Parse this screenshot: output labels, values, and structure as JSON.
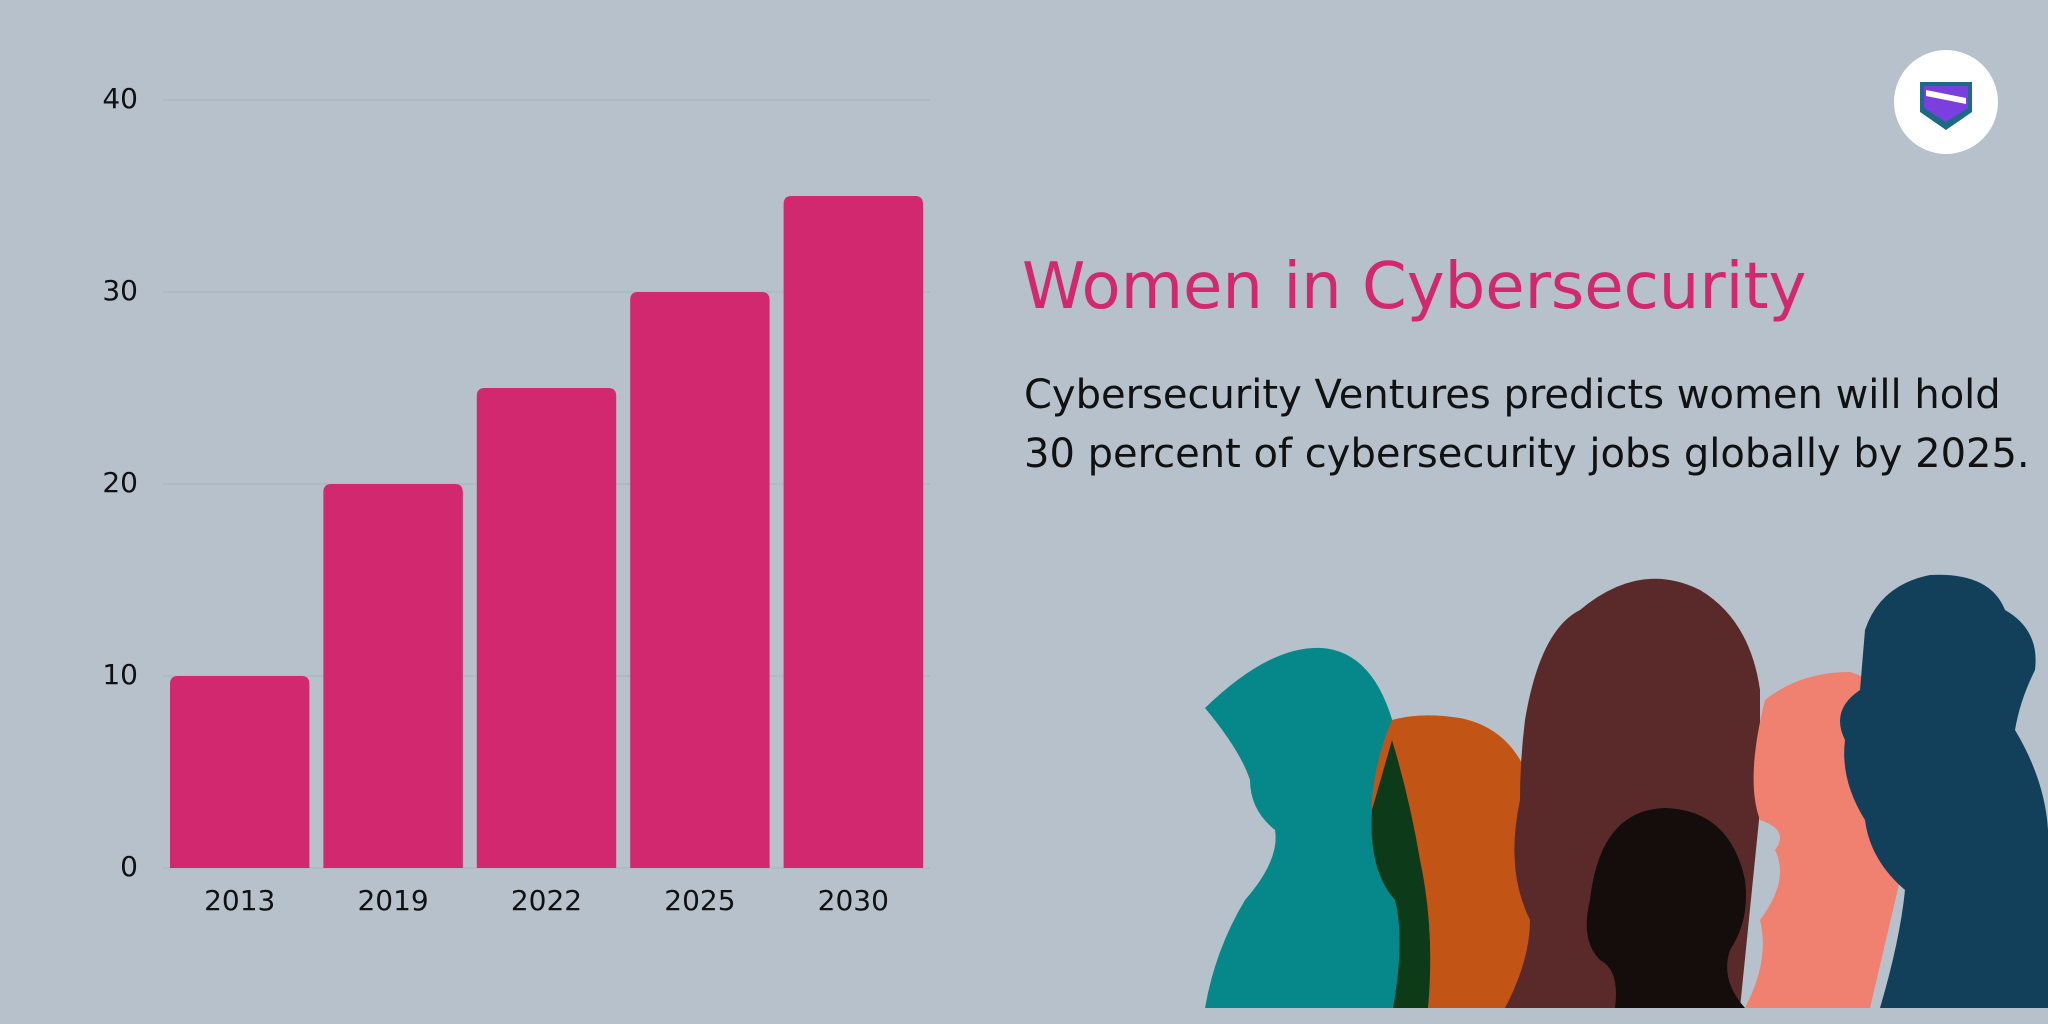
{
  "chart_data": {
    "type": "bar",
    "title": "Women in Cybersecurity",
    "subtitle": "Cybersecurity Ventures predicts women will hold 30 percent of cybersecurity jobs globally by 2025.",
    "categories": [
      "2013",
      "2019",
      "2022",
      "2025",
      "2030"
    ],
    "values": [
      10,
      20,
      25,
      30,
      35
    ],
    "color": "#d2286f",
    "ylim": [
      0,
      40
    ],
    "yticks": [
      0,
      10,
      20,
      30,
      40
    ],
    "grid": true
  }
}
